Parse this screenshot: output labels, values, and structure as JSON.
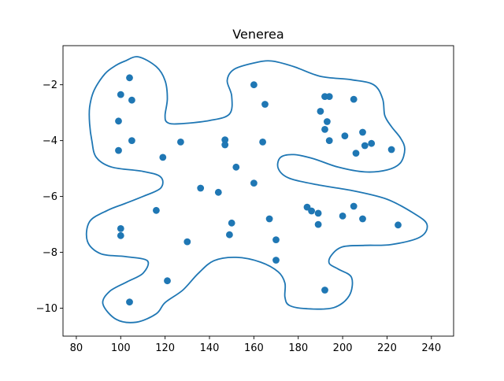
{
  "chart_data": {
    "type": "scatter",
    "title": "Venerea",
    "xlabel": "",
    "ylabel": "",
    "xlim": [
      74,
      250
    ],
    "ylim": [
      -11,
      -0.6
    ],
    "xticks": [
      80,
      100,
      120,
      140,
      160,
      180,
      200,
      220,
      240
    ],
    "yticks": [
      -2,
      -4,
      -6,
      -8,
      -10
    ],
    "grid": false,
    "legend": "none",
    "colors": {
      "points": "#1f77b4",
      "outline": "#1f77b4",
      "axes": "#000000",
      "background": "#ffffff"
    },
    "series": [
      {
        "type": "scatter",
        "points": [
          {
            "x": 104,
            "y": -1.75
          },
          {
            "x": 100,
            "y": -2.35
          },
          {
            "x": 105,
            "y": -2.55
          },
          {
            "x": 99,
            "y": -3.3
          },
          {
            "x": 105,
            "y": -4.0
          },
          {
            "x": 99,
            "y": -4.35
          },
          {
            "x": 119,
            "y": -4.6
          },
          {
            "x": 127,
            "y": -4.05
          },
          {
            "x": 147,
            "y": -3.97
          },
          {
            "x": 147,
            "y": -4.15
          },
          {
            "x": 152,
            "y": -4.95
          },
          {
            "x": 160,
            "y": -2.0
          },
          {
            "x": 165,
            "y": -2.7
          },
          {
            "x": 164,
            "y": -4.05
          },
          {
            "x": 136,
            "y": -5.7
          },
          {
            "x": 144,
            "y": -5.85
          },
          {
            "x": 160,
            "y": -5.52
          },
          {
            "x": 116,
            "y": -6.5
          },
          {
            "x": 100,
            "y": -7.15
          },
          {
            "x": 100,
            "y": -7.4
          },
          {
            "x": 130,
            "y": -7.62
          },
          {
            "x": 150,
            "y": -6.95
          },
          {
            "x": 149,
            "y": -7.37
          },
          {
            "x": 167,
            "y": -6.8
          },
          {
            "x": 170,
            "y": -7.55
          },
          {
            "x": 170,
            "y": -8.28
          },
          {
            "x": 121,
            "y": -9.02
          },
          {
            "x": 104,
            "y": -9.78
          },
          {
            "x": 192,
            "y": -2.42
          },
          {
            "x": 194,
            "y": -2.42
          },
          {
            "x": 205,
            "y": -2.52
          },
          {
            "x": 190,
            "y": -2.95
          },
          {
            "x": 193,
            "y": -3.32
          },
          {
            "x": 192,
            "y": -3.6
          },
          {
            "x": 194,
            "y": -4.0
          },
          {
            "x": 201,
            "y": -3.83
          },
          {
            "x": 209,
            "y": -3.7
          },
          {
            "x": 213,
            "y": -4.1
          },
          {
            "x": 210,
            "y": -4.18
          },
          {
            "x": 206,
            "y": -4.45
          },
          {
            "x": 222,
            "y": -4.32
          },
          {
            "x": 184,
            "y": -6.38
          },
          {
            "x": 186,
            "y": -6.52
          },
          {
            "x": 189,
            "y": -6.6
          },
          {
            "x": 189,
            "y": -7.0
          },
          {
            "x": 200,
            "y": -6.7
          },
          {
            "x": 205,
            "y": -6.35
          },
          {
            "x": 209,
            "y": -6.8
          },
          {
            "x": 225,
            "y": -7.02
          },
          {
            "x": 192,
            "y": -9.35
          }
        ]
      },
      {
        "type": "line",
        "closed": true,
        "points": [
          {
            "x": 102,
            "y": -1.15
          },
          {
            "x": 108,
            "y": -1.0
          },
          {
            "x": 116,
            "y": -1.35
          },
          {
            "x": 120,
            "y": -1.85
          },
          {
            "x": 121,
            "y": -2.5
          },
          {
            "x": 120,
            "y": -3.1
          },
          {
            "x": 121,
            "y": -3.35
          },
          {
            "x": 126,
            "y": -3.4
          },
          {
            "x": 140,
            "y": -3.28
          },
          {
            "x": 149,
            "y": -3.05
          },
          {
            "x": 150,
            "y": -2.4
          },
          {
            "x": 148,
            "y": -1.85
          },
          {
            "x": 151,
            "y": -1.45
          },
          {
            "x": 160,
            "y": -1.22
          },
          {
            "x": 168,
            "y": -1.15
          },
          {
            "x": 178,
            "y": -1.35
          },
          {
            "x": 190,
            "y": -1.7
          },
          {
            "x": 204,
            "y": -1.82
          },
          {
            "x": 214,
            "y": -2.0
          },
          {
            "x": 218,
            "y": -2.5
          },
          {
            "x": 219,
            "y": -3.1
          },
          {
            "x": 222,
            "y": -3.5
          },
          {
            "x": 226,
            "y": -3.9
          },
          {
            "x": 228,
            "y": -4.3
          },
          {
            "x": 226,
            "y": -4.8
          },
          {
            "x": 220,
            "y": -5.05
          },
          {
            "x": 210,
            "y": -5.12
          },
          {
            "x": 198,
            "y": -4.95
          },
          {
            "x": 187,
            "y": -4.65
          },
          {
            "x": 178,
            "y": -4.5
          },
          {
            "x": 172,
            "y": -4.6
          },
          {
            "x": 171,
            "y": -5.0
          },
          {
            "x": 176,
            "y": -5.35
          },
          {
            "x": 190,
            "y": -5.6
          },
          {
            "x": 205,
            "y": -5.8
          },
          {
            "x": 220,
            "y": -6.1
          },
          {
            "x": 232,
            "y": -6.6
          },
          {
            "x": 238,
            "y": -7.0
          },
          {
            "x": 235,
            "y": -7.45
          },
          {
            "x": 222,
            "y": -7.72
          },
          {
            "x": 210,
            "y": -7.75
          },
          {
            "x": 200,
            "y": -7.8
          },
          {
            "x": 195,
            "y": -8.1
          },
          {
            "x": 194,
            "y": -8.4
          },
          {
            "x": 198,
            "y": -8.6
          },
          {
            "x": 204,
            "y": -8.9
          },
          {
            "x": 203,
            "y": -9.55
          },
          {
            "x": 196,
            "y": -9.98
          },
          {
            "x": 184,
            "y": -10.02
          },
          {
            "x": 176,
            "y": -9.9
          },
          {
            "x": 174,
            "y": -9.6
          },
          {
            "x": 174,
            "y": -9.1
          },
          {
            "x": 171,
            "y": -8.7
          },
          {
            "x": 163,
            "y": -8.35
          },
          {
            "x": 152,
            "y": -8.18
          },
          {
            "x": 142,
            "y": -8.3
          },
          {
            "x": 135,
            "y": -8.75
          },
          {
            "x": 128,
            "y": -9.35
          },
          {
            "x": 120,
            "y": -9.8
          },
          {
            "x": 116,
            "y": -10.2
          },
          {
            "x": 107,
            "y": -10.5
          },
          {
            "x": 98,
            "y": -10.4
          },
          {
            "x": 92,
            "y": -9.85
          },
          {
            "x": 95,
            "y": -9.4
          },
          {
            "x": 103,
            "y": -9.05
          },
          {
            "x": 110,
            "y": -8.75
          },
          {
            "x": 112,
            "y": -8.3
          },
          {
            "x": 102,
            "y": -8.15
          },
          {
            "x": 91,
            "y": -8.05
          },
          {
            "x": 85,
            "y": -7.6
          },
          {
            "x": 86,
            "y": -6.9
          },
          {
            "x": 94,
            "y": -6.5
          },
          {
            "x": 102,
            "y": -6.25
          },
          {
            "x": 110,
            "y": -6.0
          },
          {
            "x": 118,
            "y": -5.7
          },
          {
            "x": 118,
            "y": -5.3
          },
          {
            "x": 110,
            "y": -5.1
          },
          {
            "x": 96,
            "y": -4.95
          },
          {
            "x": 89,
            "y": -4.6
          },
          {
            "x": 87,
            "y": -4.0
          },
          {
            "x": 86,
            "y": -3.4
          },
          {
            "x": 86,
            "y": -2.8
          },
          {
            "x": 88,
            "y": -2.2
          },
          {
            "x": 93,
            "y": -1.6
          },
          {
            "x": 98,
            "y": -1.3
          }
        ]
      }
    ]
  }
}
